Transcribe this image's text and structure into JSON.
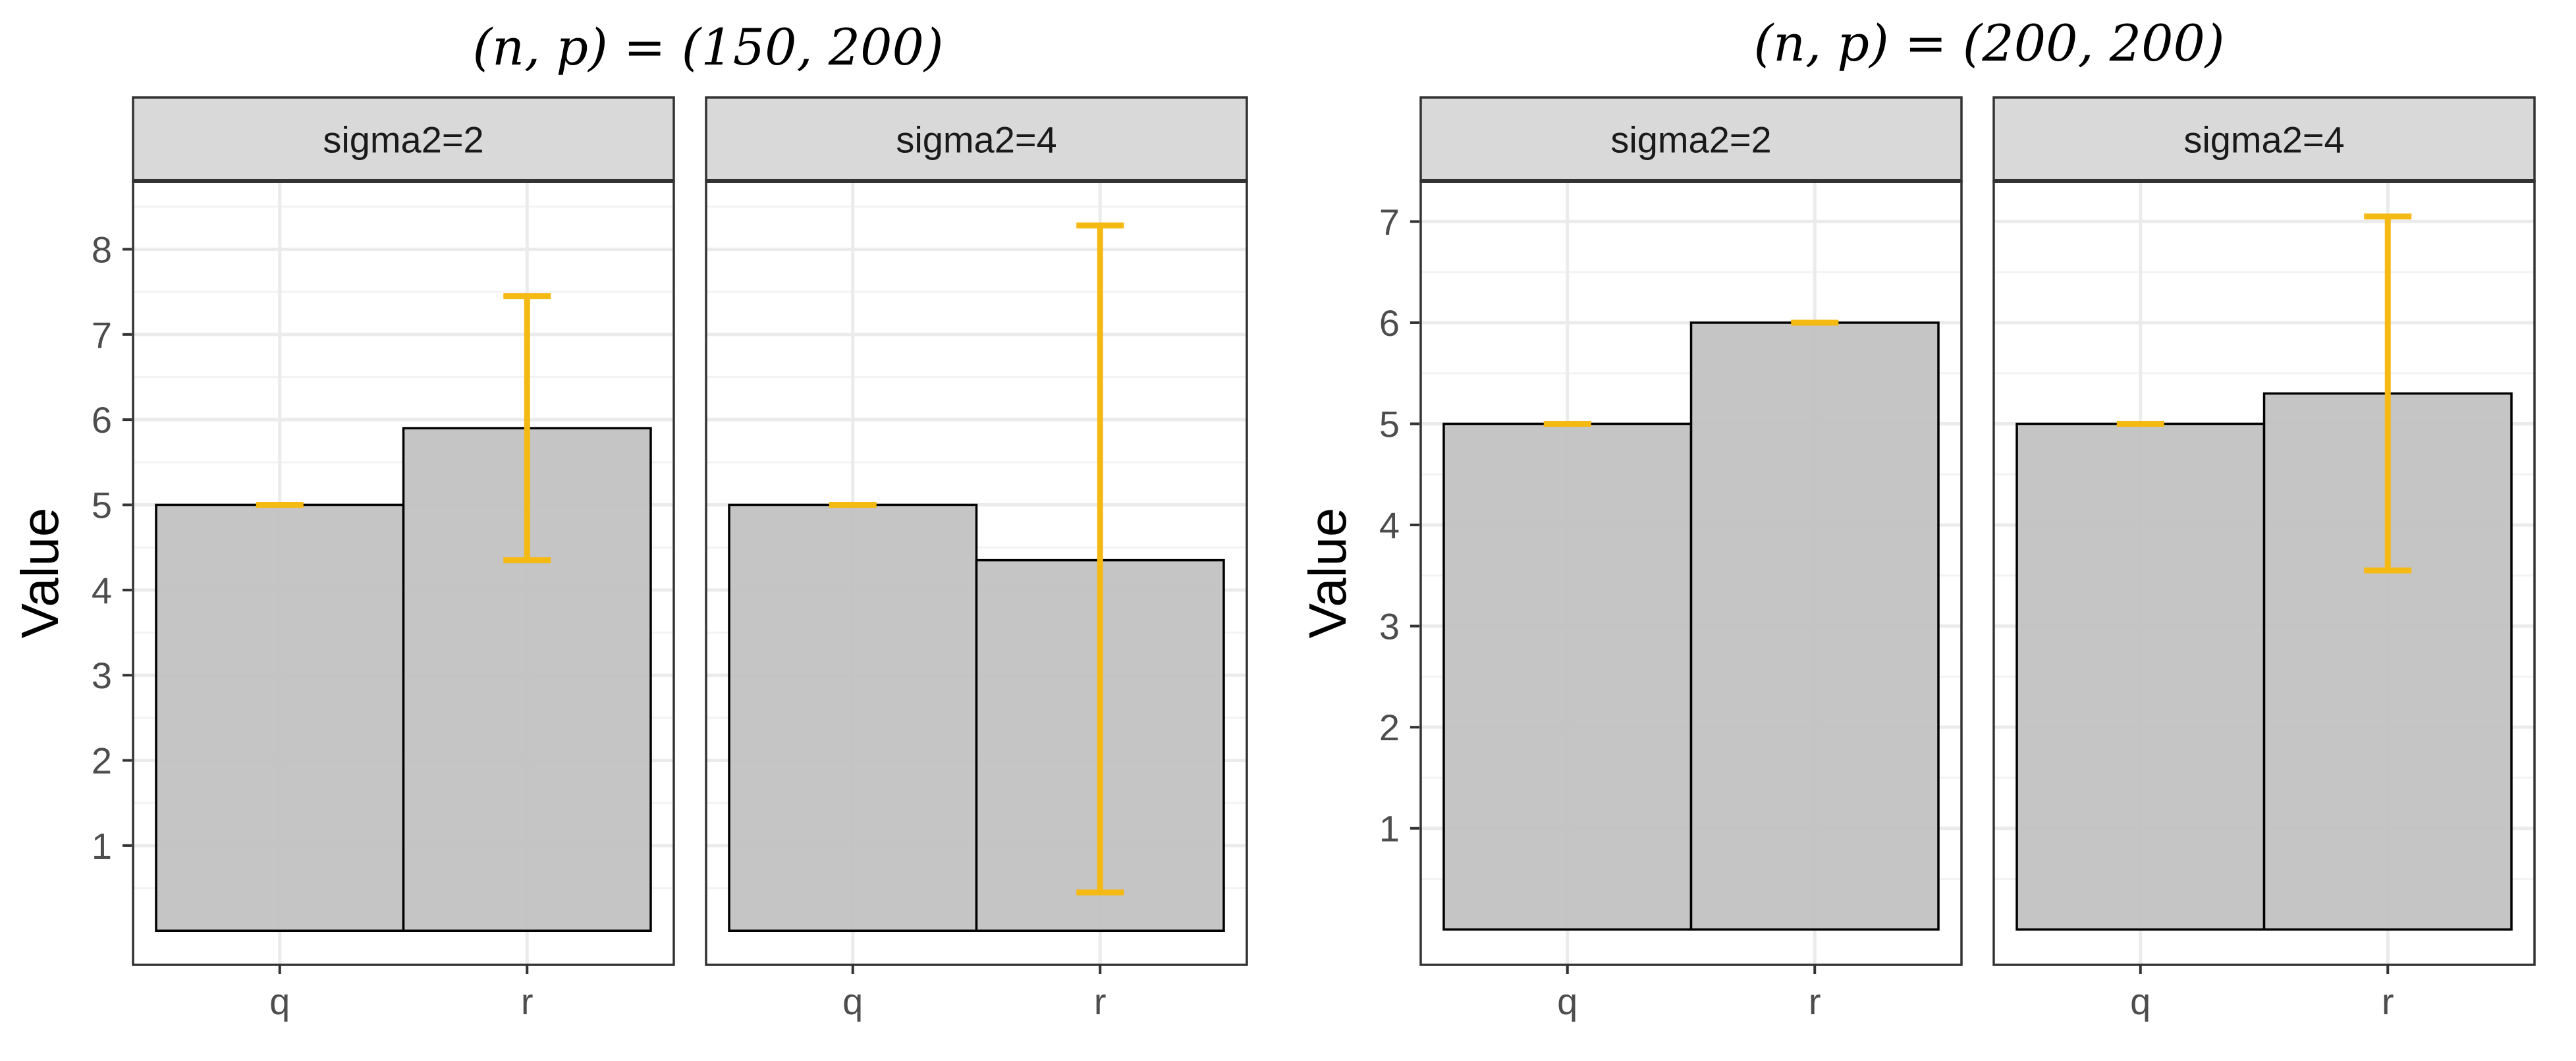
{
  "chart_data": [
    {
      "type": "bar",
      "title": "(n, p) = (150, 200)",
      "xlabel": "",
      "ylabel": "Value",
      "yticks": [
        1,
        2,
        3,
        4,
        5,
        6,
        7,
        8
      ],
      "ylim": [
        -0.4,
        8.8
      ],
      "grid": true,
      "facets": [
        {
          "label": "sigma2=2",
          "categories": [
            "q",
            "r"
          ],
          "values": [
            5.0,
            5.9
          ],
          "error_low": [
            5.0,
            4.35
          ],
          "error_high": [
            5.0,
            7.45
          ]
        },
        {
          "label": "sigma2=4",
          "categories": [
            "q",
            "r"
          ],
          "values": [
            5.0,
            4.35
          ],
          "error_low": [
            5.0,
            0.45
          ],
          "error_high": [
            5.0,
            8.28
          ]
        }
      ]
    },
    {
      "type": "bar",
      "title": "(n, p) = (200, 200)",
      "xlabel": "",
      "ylabel": "Value",
      "yticks": [
        1,
        2,
        3,
        4,
        5,
        6,
        7
      ],
      "ylim": [
        -0.35,
        7.4
      ],
      "grid": true,
      "facets": [
        {
          "label": "sigma2=2",
          "categories": [
            "q",
            "r"
          ],
          "values": [
            5.0,
            6.0
          ],
          "error_low": [
            5.0,
            6.0
          ],
          "error_high": [
            5.0,
            6.0
          ]
        },
        {
          "label": "sigma2=4",
          "categories": [
            "q",
            "r"
          ],
          "values": [
            5.0,
            5.3
          ],
          "error_low": [
            5.0,
            3.55
          ],
          "error_high": [
            5.0,
            7.05
          ]
        }
      ]
    }
  ],
  "colors": {
    "bar_fill": "#c2c2c2",
    "bar_stroke": "#000000",
    "error_bar": "#f5b914",
    "grid_major": "#ebebeb",
    "grid_minor": "#f3f3f3",
    "strip_fill": "#d9d9d9",
    "panel_border": "#333333",
    "tick_text": "#4d4d4d"
  }
}
